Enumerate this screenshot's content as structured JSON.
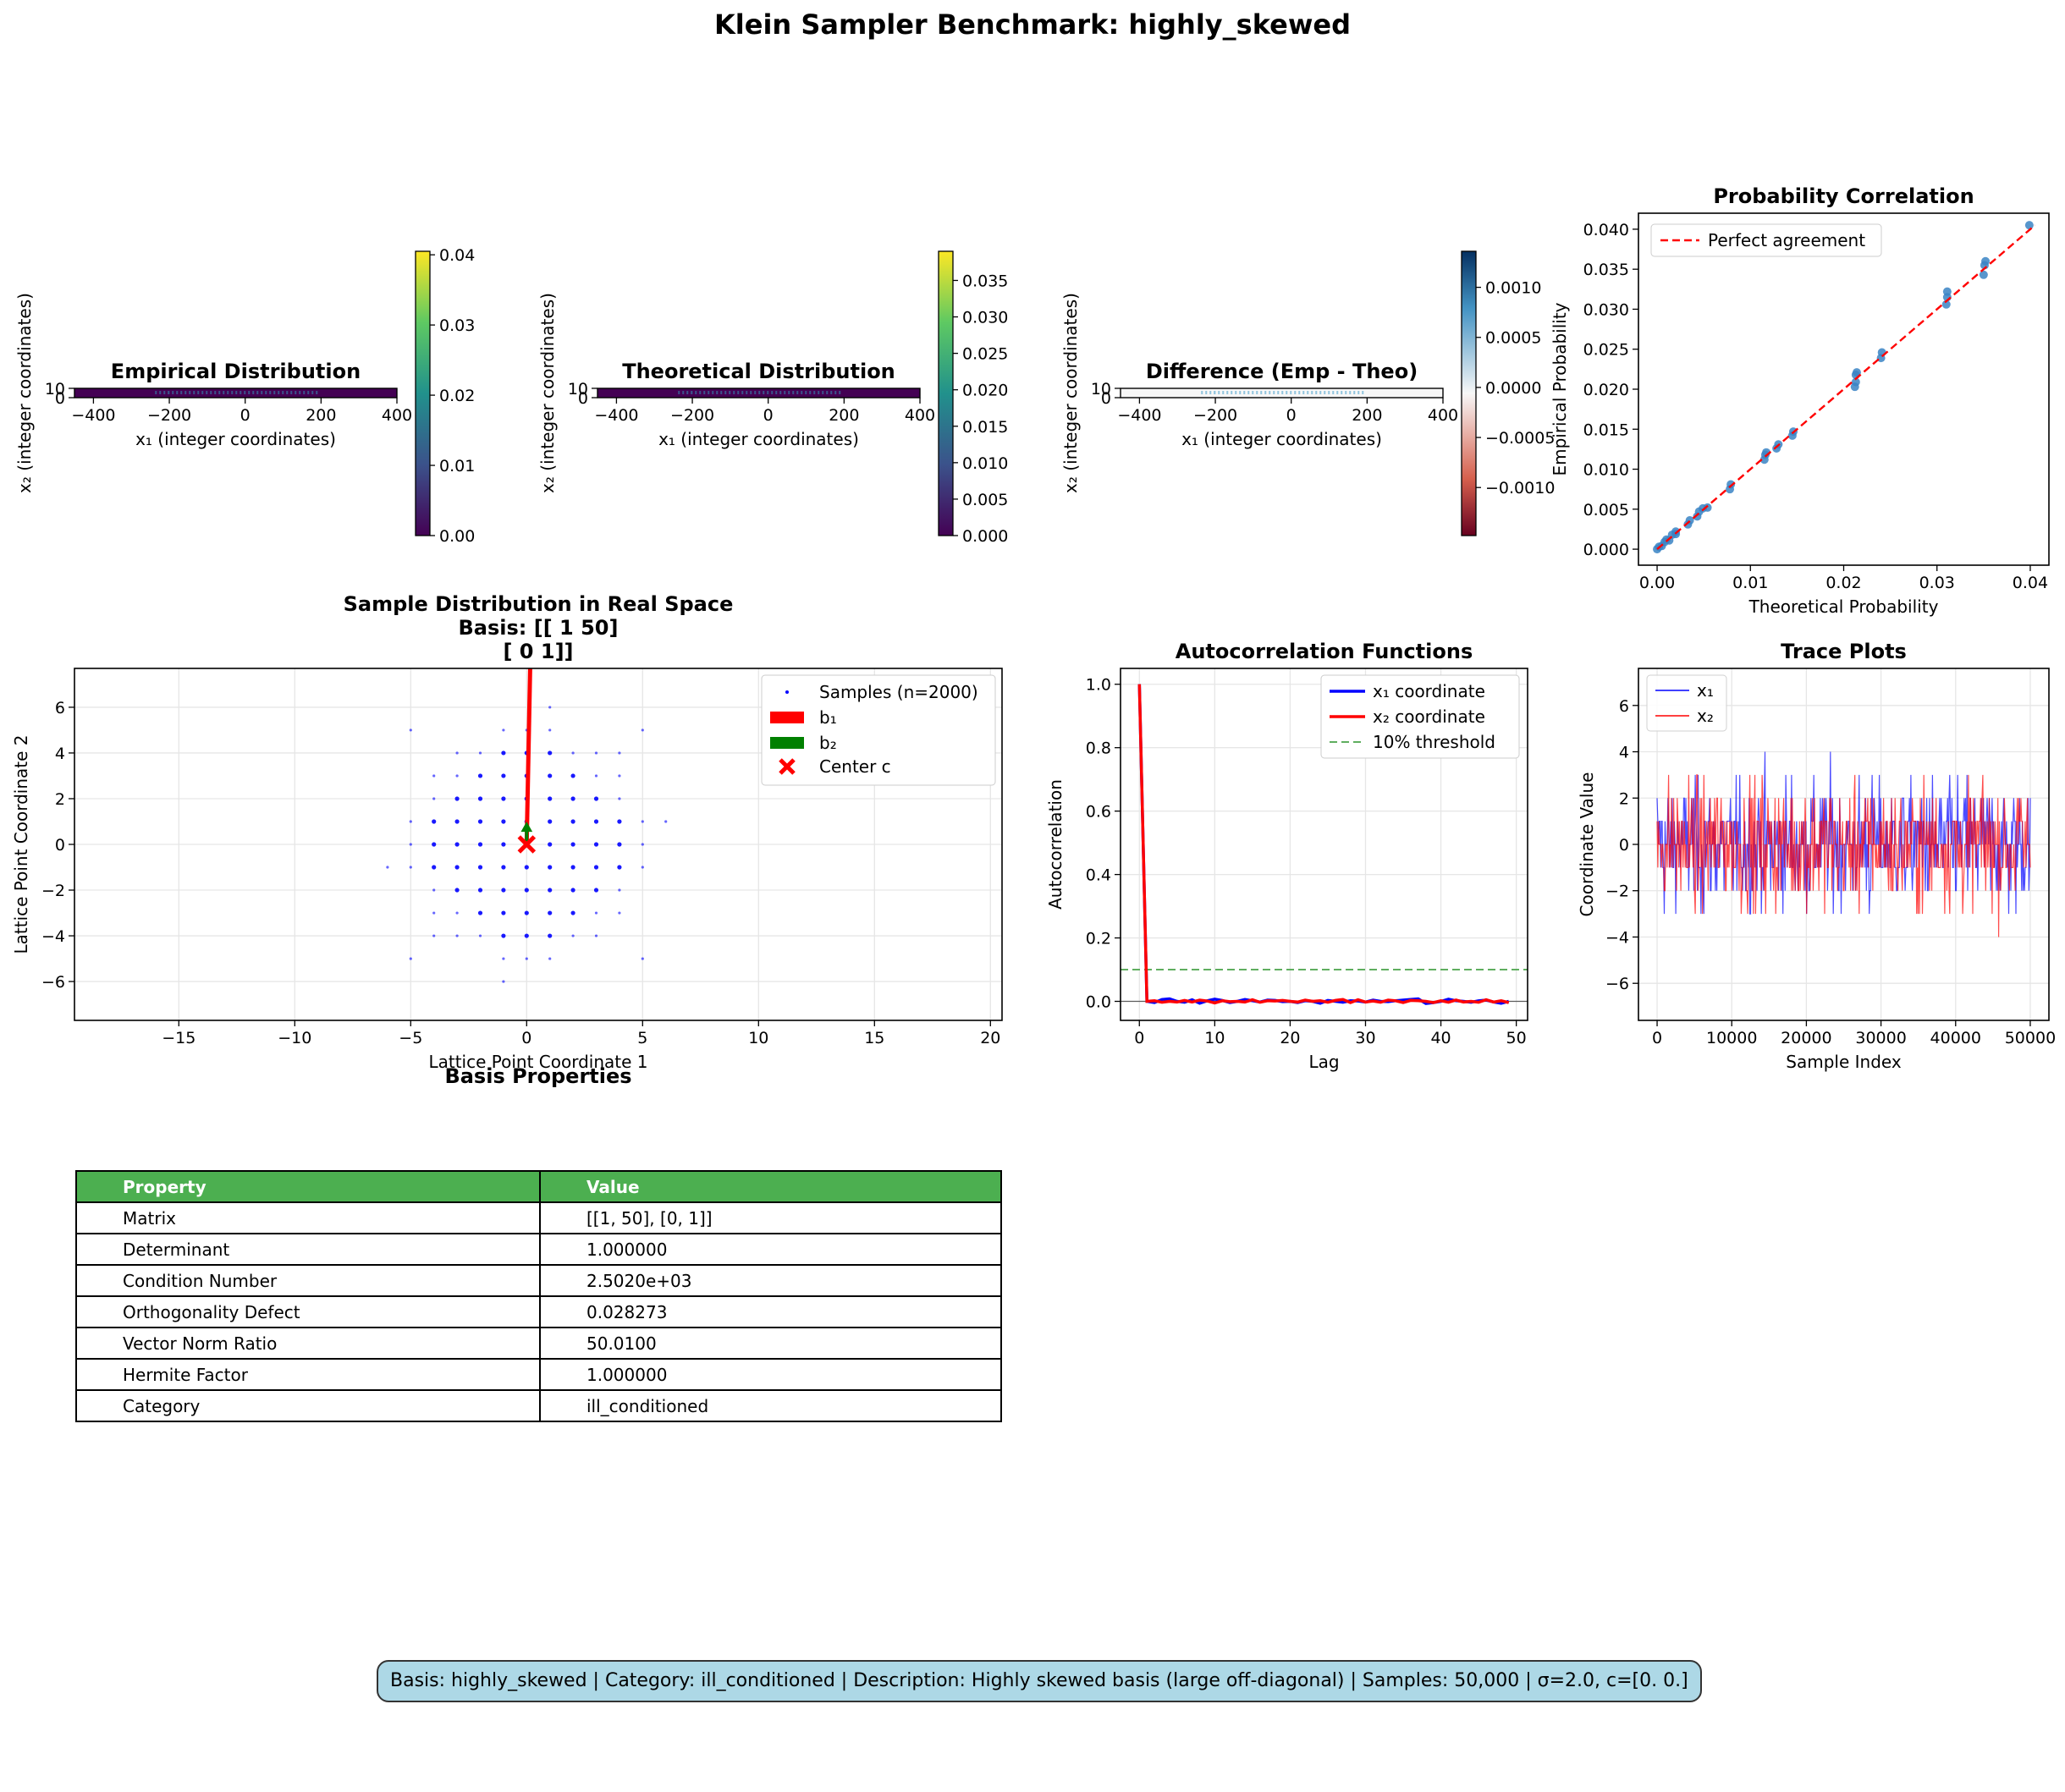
{
  "suptitle": "Klein Sampler Benchmark: highly_skewed",
  "colors": {
    "blue": "#0000ff",
    "red": "#ff0000",
    "green": "#008000",
    "scatter": "#3a84c4",
    "header": "#4caf50",
    "footer_bg": "#add8e6"
  },
  "heatmaps": [
    {
      "title": "Empirical Distribution",
      "xlabel": "x₁ (integer coordinates)",
      "ylabel": "x₂ (integer coordinates)",
      "xticks": [
        "−400",
        "−200",
        "0",
        "200",
        "400"
      ],
      "yticks": [
        "10",
        "0"
      ],
      "cbar_ticks": [
        "0.00",
        "0.01",
        "0.02",
        "0.03",
        "0.04"
      ],
      "colormap": "viridis"
    },
    {
      "title": "Theoretical Distribution",
      "xlabel": "x₁ (integer coordinates)",
      "ylabel": "x₂ (integer coordinates)",
      "xticks": [
        "−400",
        "−200",
        "0",
        "200",
        "400"
      ],
      "yticks": [
        "10",
        "0"
      ],
      "cbar_ticks": [
        "0.000",
        "0.005",
        "0.010",
        "0.015",
        "0.020",
        "0.025",
        "0.030",
        "0.035"
      ],
      "colormap": "viridis"
    },
    {
      "title": "Difference (Emp - Theo)",
      "xlabel": "x₁ (integer coordinates)",
      "ylabel": "x₂ (integer coordinates)",
      "xticks": [
        "−400",
        "−200",
        "0",
        "200",
        "400"
      ],
      "yticks": [
        "10",
        "0"
      ],
      "cbar_ticks": [
        "−0.0010",
        "−0.0005",
        "0.0000",
        "0.0005",
        "0.0010"
      ],
      "colormap": "RdBu"
    }
  ],
  "chart_data": [
    {
      "type": "scatter",
      "title": "Probability Correlation",
      "xlabel": "Theoretical Probability",
      "ylabel": "Empirical Probability",
      "xlim": [
        -0.002,
        0.042
      ],
      "ylim": [
        -0.002,
        0.042
      ],
      "xticks": [
        "0.00",
        "0.01",
        "0.02",
        "0.03",
        "0.04"
      ],
      "yticks": [
        "0.000",
        "0.005",
        "0.010",
        "0.015",
        "0.020",
        "0.025",
        "0.030",
        "0.035",
        "0.040"
      ],
      "legend": "Perfect agreement",
      "points": [
        [
          0.0,
          0.0
        ],
        [
          0.0002,
          0.0003
        ],
        [
          0.0005,
          0.0004
        ],
        [
          0.0008,
          0.0009
        ],
        [
          0.001,
          0.0012
        ],
        [
          0.0013,
          0.0011
        ],
        [
          0.0016,
          0.0018
        ],
        [
          0.002,
          0.0019
        ],
        [
          0.002,
          0.0022
        ],
        [
          0.0033,
          0.0031
        ],
        [
          0.0035,
          0.0036
        ],
        [
          0.0043,
          0.0041
        ],
        [
          0.0045,
          0.0047
        ],
        [
          0.0049,
          0.0051
        ],
        [
          0.0054,
          0.0052
        ],
        [
          0.0078,
          0.0075
        ],
        [
          0.0079,
          0.0081
        ],
        [
          0.0115,
          0.0112
        ],
        [
          0.0116,
          0.0118
        ],
        [
          0.0117,
          0.0121
        ],
        [
          0.0128,
          0.0126
        ],
        [
          0.013,
          0.0131
        ],
        [
          0.0145,
          0.0142
        ],
        [
          0.0146,
          0.0147
        ],
        [
          0.0212,
          0.0203
        ],
        [
          0.0213,
          0.0209
        ],
        [
          0.0213,
          0.0218
        ],
        [
          0.0214,
          0.0221
        ],
        [
          0.024,
          0.0239
        ],
        [
          0.0241,
          0.0246
        ],
        [
          0.031,
          0.0306
        ],
        [
          0.0311,
          0.0315
        ],
        [
          0.0311,
          0.0322
        ],
        [
          0.035,
          0.0343
        ],
        [
          0.0351,
          0.0355
        ],
        [
          0.0352,
          0.036
        ],
        [
          0.0399,
          0.0405
        ]
      ]
    },
    {
      "type": "scatter",
      "title": "Sample Distribution in Real Space",
      "subtitle": "Basis: [[ 1 50]",
      "subtitle2": "[ 0  1]]",
      "xlabel": "Lattice Point Coordinate 1",
      "ylabel": "Lattice Point Coordinate 2",
      "xlim": [
        -19.5,
        20.5
      ],
      "ylim": [
        -7.7,
        7.7
      ],
      "xticks": [
        -15,
        -10,
        -5,
        0,
        5,
        10,
        15,
        20
      ],
      "yticks": [
        -6,
        -4,
        -2,
        0,
        2,
        4,
        6
      ],
      "legend": [
        "Samples (n=2000)",
        "b₁",
        "b₂",
        "Center c"
      ]
    },
    {
      "type": "line",
      "title": "Autocorrelation Functions",
      "xlabel": "Lag",
      "ylabel": "Autocorrelation",
      "xlim": [
        -2.5,
        51.5
      ],
      "ylim": [
        -0.06,
        1.05
      ],
      "xticks": [
        0,
        10,
        20,
        30,
        40,
        50
      ],
      "yticks": [
        "0.0",
        "0.2",
        "0.4",
        "0.6",
        "0.8",
        "1.0"
      ],
      "threshold": 0.1,
      "series": [
        {
          "name": "x₁ coordinate",
          "values": [
            1.0,
            0.0,
            -0.004,
            0.006,
            0.008,
            0.0,
            -0.003,
            0.005,
            -0.006,
            0.002,
            0.007,
            0.003,
            -0.004,
            0.0,
            0.006,
            0.002,
            -0.002,
            0.004,
            0.003,
            -0.001,
            0.0,
            -0.004,
            0.002,
            0.0,
            -0.006,
            0.003,
            0.0,
            -0.003,
            0.002,
            0.001,
            -0.002,
            0.004,
            0.0,
            -0.001,
            0.002,
            0.004,
            0.006,
            0.008,
            -0.007,
            -0.004,
            0.0,
            0.007,
            0.002,
            0.0,
            -0.003,
            0.002,
            0.004,
            -0.002,
            -0.006,
            0.0
          ]
        },
        {
          "name": "x₂ coordinate",
          "values": [
            1.0,
            0.0,
            0.002,
            -0.003,
            0.0,
            -0.002,
            0.003,
            -0.002,
            0.004,
            0.001,
            -0.005,
            0.002,
            -0.001,
            0.0,
            -0.002,
            0.005,
            -0.003,
            0.002,
            0.001,
            0.003,
            0.0,
            -0.002,
            0.004,
            0.0,
            0.002,
            -0.003,
            0.003,
            0.006,
            -0.004,
            0.005,
            -0.002,
            0.001,
            -0.003,
            0.004,
            0.002,
            -0.004,
            0.003,
            0.002,
            0.0,
            -0.004,
            0.002,
            -0.003,
            0.004,
            -0.002,
            0.0,
            -0.003,
            0.005,
            -0.002,
            0.002,
            -0.004
          ]
        },
        {
          "name": "10% threshold",
          "values": [
            0.1
          ]
        }
      ]
    },
    {
      "type": "line",
      "title": "Trace Plots",
      "xlabel": "Sample Index",
      "ylabel": "Coordinate Value",
      "xlim": [
        -2500,
        52500
      ],
      "ylim": [
        -7.6,
        7.6
      ],
      "xticks": [
        0,
        10000,
        20000,
        30000,
        40000,
        50000
      ],
      "yticks": [
        -6,
        -4,
        -2,
        0,
        2,
        4,
        6
      ],
      "series": [
        {
          "name": "x₁"
        },
        {
          "name": "x₂"
        }
      ]
    }
  ],
  "basis_table": {
    "title": "Basis Properties",
    "headers": [
      "Property",
      "Value"
    ],
    "rows": [
      [
        "Matrix",
        "[[1, 50], [0, 1]]"
      ],
      [
        "Determinant",
        "1.000000"
      ],
      [
        "Condition Number",
        "2.5020e+03"
      ],
      [
        "Orthogonality Defect",
        "0.028273"
      ],
      [
        "Vector Norm Ratio",
        "50.0100"
      ],
      [
        "Hermite Factor",
        "1.000000"
      ],
      [
        "Category",
        "ill_conditioned"
      ]
    ]
  },
  "footer": "Basis: highly_skewed | Category: ill_conditioned | Description: Highly skewed basis (large off-diagonal) | Samples: 50,000 | σ=2.0, c=[0. 0.]"
}
